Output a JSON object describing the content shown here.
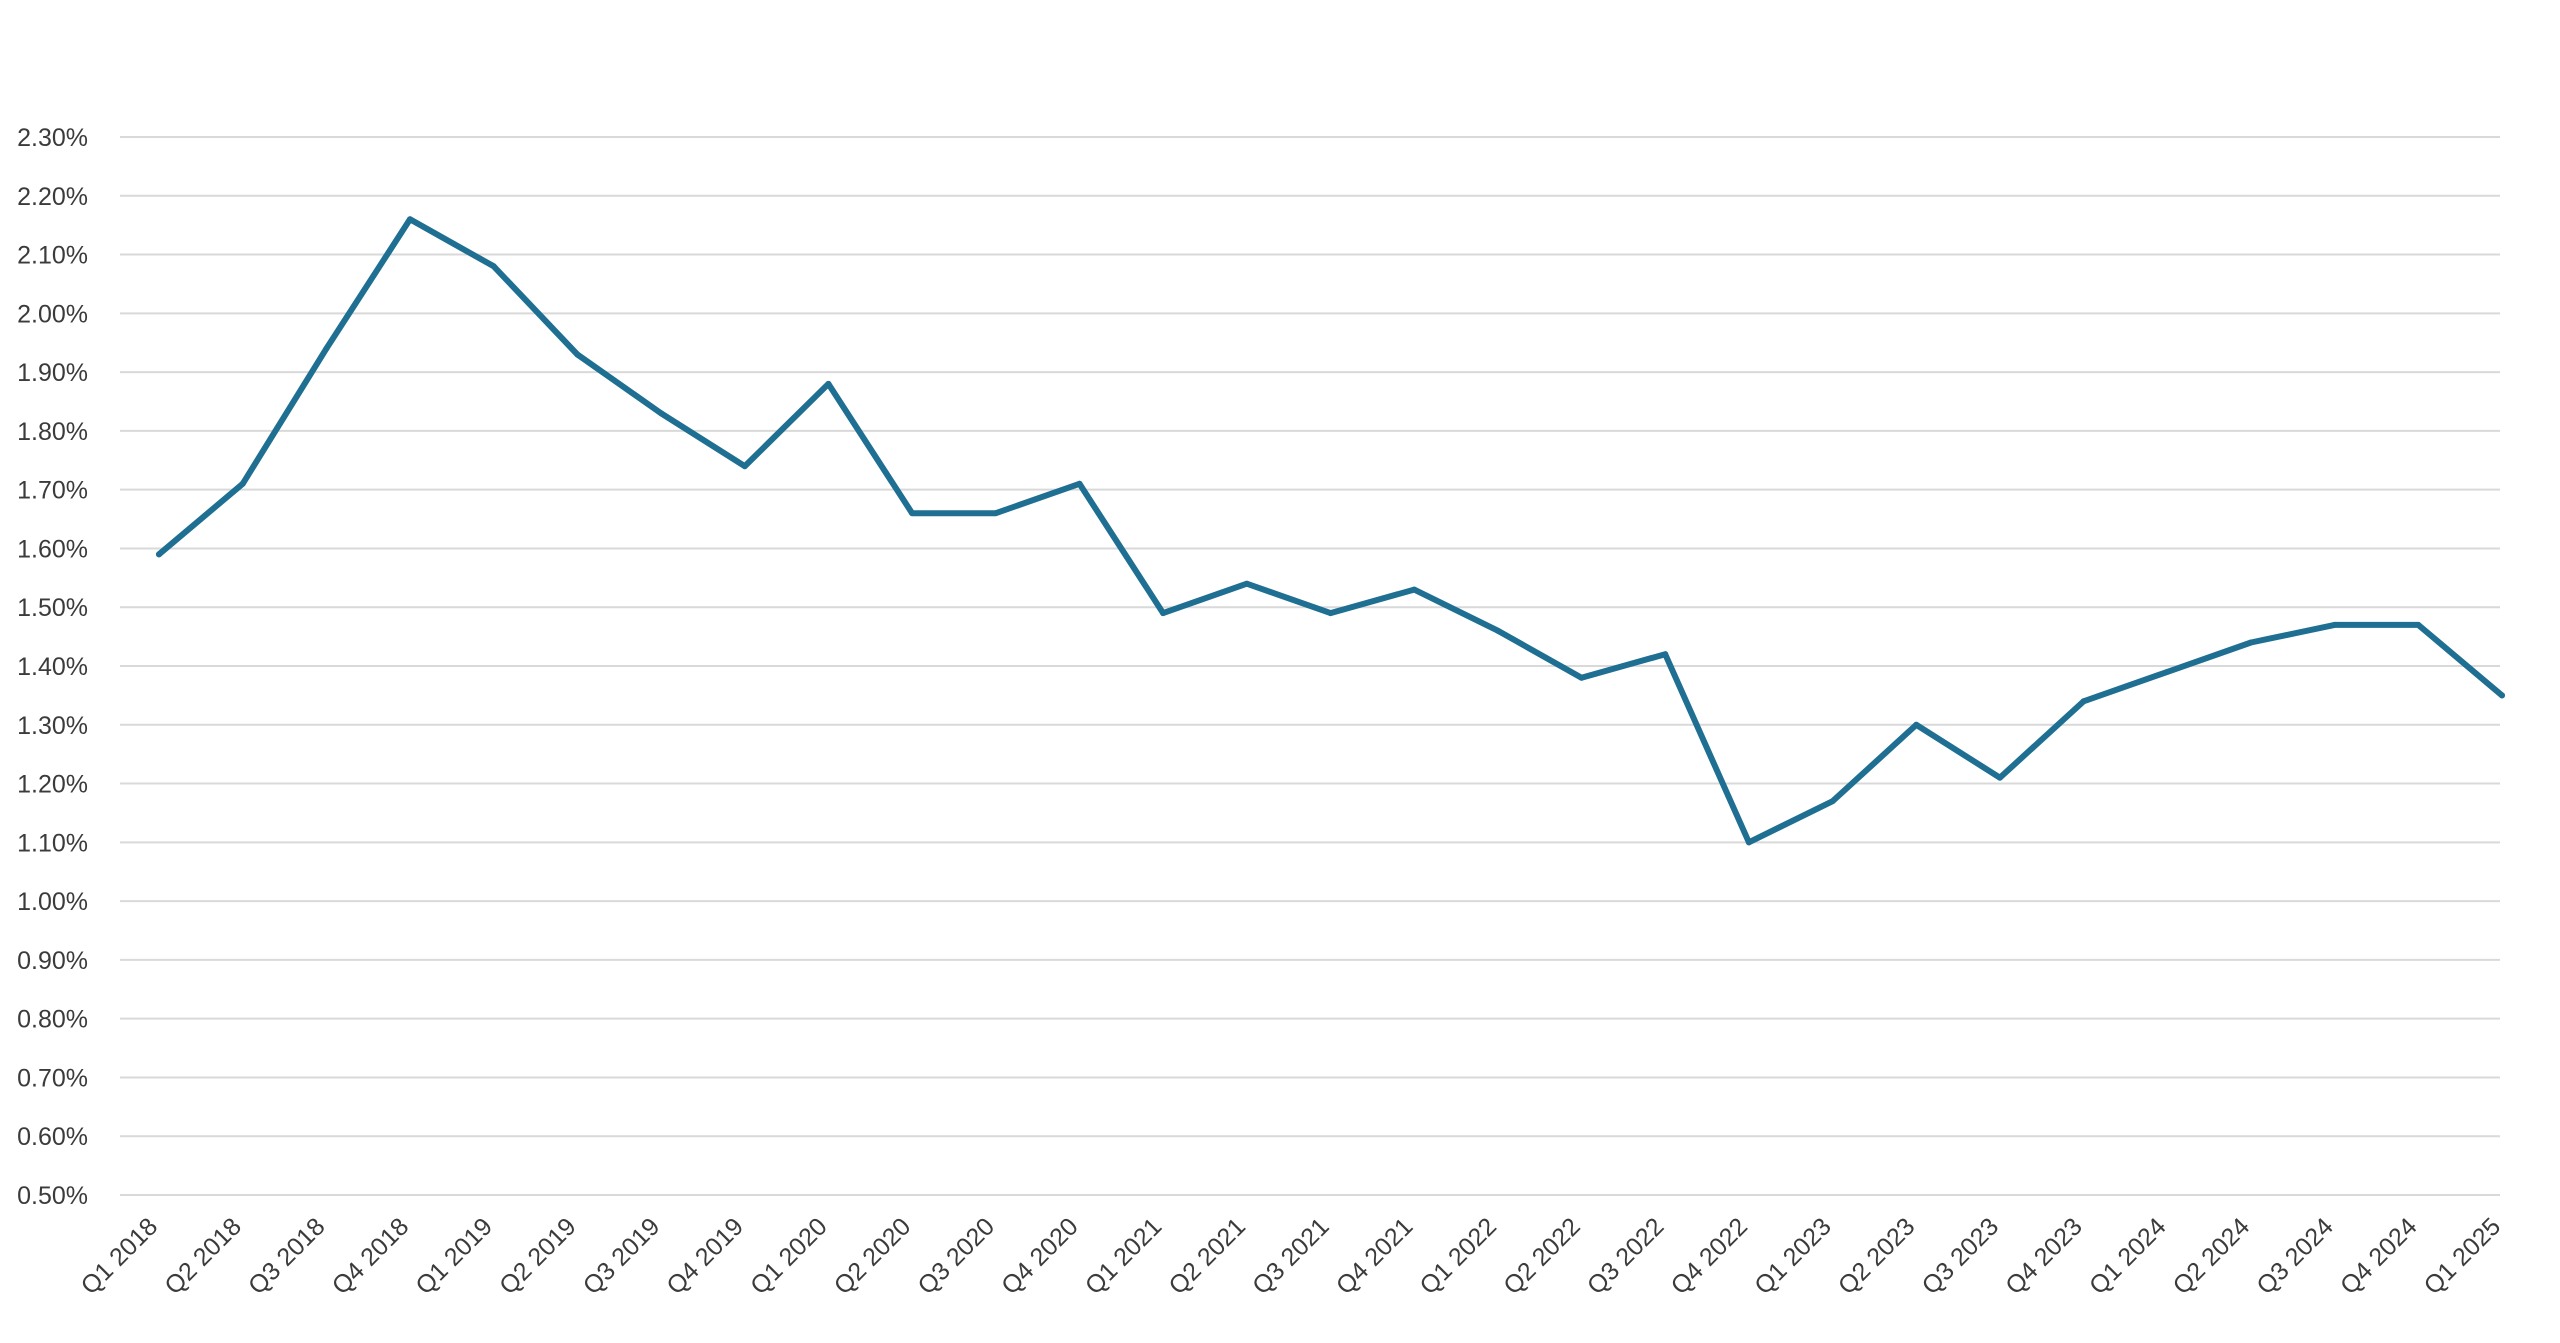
{
  "chart_data": {
    "type": "line",
    "title": "",
    "xlabel": "",
    "ylabel": "",
    "ylim": [
      0.5,
      2.3
    ],
    "yticks": [
      0.5,
      0.6,
      0.7,
      0.8,
      0.9,
      1.0,
      1.1,
      1.2,
      1.3,
      1.4,
      1.5,
      1.6,
      1.7,
      1.8,
      1.9,
      2.0,
      2.1,
      2.2,
      2.3
    ],
    "ytick_labels": [
      "0.50%",
      "0.60%",
      "0.70%",
      "0.80%",
      "0.90%",
      "1.00%",
      "1.10%",
      "1.20%",
      "1.30%",
      "1.40%",
      "1.50%",
      "1.60%",
      "1.70%",
      "1.80%",
      "1.90%",
      "2.00%",
      "2.10%",
      "2.20%",
      "2.30%"
    ],
    "grid": true,
    "legend": "none",
    "categories": [
      "Q1 2018",
      "Q2 2018",
      "Q3 2018",
      "Q4 2018",
      "Q1 2019",
      "Q2 2019",
      "Q3 2019",
      "Q4 2019",
      "Q1 2020",
      "Q2 2020",
      "Q3 2020",
      "Q4 2020",
      "Q1 2021",
      "Q2 2021",
      "Q3 2021",
      "Q4 2021",
      "Q1 2022",
      "Q2 2022",
      "Q3 2022",
      "Q4 2022",
      "Q1 2023",
      "Q2 2023",
      "Q3 2023",
      "Q4 2023",
      "Q1 2024",
      "Q2 2024",
      "Q3 2024",
      "Q4 2024",
      "Q1 2025"
    ],
    "series": [
      {
        "values": [
          1.59,
          1.71,
          1.94,
          2.16,
          2.08,
          1.93,
          1.83,
          1.74,
          1.88,
          1.66,
          1.66,
          1.71,
          1.49,
          1.54,
          1.49,
          1.53,
          1.46,
          1.38,
          1.42,
          1.1,
          1.17,
          1.3,
          1.21,
          1.34,
          1.39,
          1.44,
          1.47,
          1.47,
          1.35
        ],
        "color": "#1f6f93"
      }
    ],
    "gridline_color": "#d9d9d9"
  }
}
